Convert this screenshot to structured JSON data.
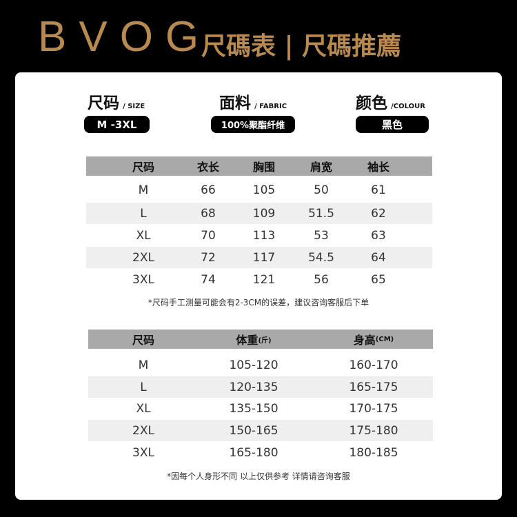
{
  "brand": "BVOG",
  "title": "尺碼表 | 尺碼推薦",
  "specs": [
    {
      "label": "尺码",
      "en": "/ SIZE",
      "value": "M -3XL"
    },
    {
      "label": "面料",
      "en": "/ FABRIC",
      "value": "100%聚酯纤维"
    },
    {
      "label": "颜色",
      "en": "/COLOUR",
      "value": "黑色"
    }
  ],
  "table1": {
    "headers": [
      "尺码",
      "衣长",
      "胸围",
      "肩宽",
      "袖长"
    ],
    "rows": [
      [
        "M",
        "66",
        "105",
        "50",
        "61"
      ],
      [
        "L",
        "68",
        "109",
        "51.5",
        "62"
      ],
      [
        "XL",
        "70",
        "113",
        "53",
        "63"
      ],
      [
        "2XL",
        "72",
        "117",
        "54.5",
        "64"
      ],
      [
        "3XL",
        "74",
        "121",
        "56",
        "65"
      ]
    ],
    "note": "*尺码手工测量可能会有2-3CM的误差，建议咨询客服后下单"
  },
  "table2": {
    "headers": [
      "尺码",
      "体重",
      "身高"
    ],
    "units": [
      "",
      "(斤)",
      "(CM)"
    ],
    "rows": [
      [
        "M",
        "105-120",
        "160-170"
      ],
      [
        "L",
        "120-135",
        "165-175"
      ],
      [
        "XL",
        "135-150",
        "170-175"
      ],
      [
        "2XL",
        "150-165",
        "175-180"
      ],
      [
        "3XL",
        "165-180",
        "180-185"
      ]
    ],
    "note": "*因每个人身形不同 以上仅供参考 详情请咨询客服"
  },
  "colors": {
    "gold": "#b98a4f",
    "header_gray": "#a9a9a9",
    "alt_row": "#efefef"
  }
}
